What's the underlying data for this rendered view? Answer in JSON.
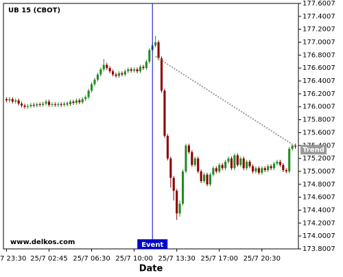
{
  "chart_data": {
    "type": "candlestick",
    "title": "UB 15 (CBOT)",
    "xlabel": "Date",
    "watermark": "www.delkos.com",
    "up_color": "#228b22",
    "down_color": "#8b0000",
    "xlim": [
      -1,
      96
    ],
    "xticks": [
      {
        "value": 0,
        "label": "7 23:30"
      },
      {
        "value": 14,
        "label": "25/7 02:45"
      },
      {
        "value": 28,
        "label": "25/7 06:30"
      },
      {
        "value": 42,
        "label": "25/7 10:00"
      },
      {
        "value": 56,
        "label": "25/7 13:30"
      },
      {
        "value": 70,
        "label": "25/7 17:00"
      },
      {
        "value": 84,
        "label": "25/7 20:30"
      }
    ],
    "ylim": [
      173.8007,
      177.6007
    ],
    "yticks": [
      173.8007,
      174.0007,
      174.2007,
      174.4007,
      174.6007,
      174.8007,
      175.0007,
      175.2007,
      175.4007,
      175.6007,
      175.8007,
      176.0007,
      176.2007,
      176.4007,
      176.6007,
      176.8007,
      177.0007,
      177.2007,
      177.4007,
      177.6007
    ],
    "event": {
      "x": 48,
      "label": "Event",
      "color": "#0000cc"
    },
    "trend": {
      "x": [
        49,
        95
      ],
      "y": [
        176.78,
        175.39
      ],
      "label": "Trend",
      "color": "#999999"
    },
    "open": [
      176.12,
      176.1,
      176.12,
      176.08,
      176.1,
      176.05,
      176.02,
      176.0,
      176.01,
      176.03,
      176.02,
      176.04,
      176.03,
      176.05,
      176.08,
      176.03,
      176.04,
      176.03,
      176.04,
      176.03,
      176.05,
      176.04,
      176.08,
      176.06,
      176.1,
      176.07,
      176.12,
      176.15,
      176.25,
      176.35,
      176.42,
      176.5,
      176.58,
      176.65,
      176.6,
      176.55,
      176.5,
      176.48,
      176.52,
      176.5,
      176.55,
      176.58,
      176.56,
      176.58,
      176.55,
      176.62,
      176.6,
      176.7,
      176.88,
      176.95,
      177.0,
      176.75,
      176.25,
      175.55,
      175.2,
      174.9,
      174.7,
      174.35,
      174.5,
      175.0,
      175.4,
      175.3,
      175.1,
      175.2,
      175.0,
      174.85,
      174.95,
      174.8,
      174.95,
      175.05,
      175.0,
      175.1,
      175.05,
      175.15,
      175.2,
      175.05,
      175.25,
      175.1,
      175.2,
      175.05,
      175.15,
      175.08,
      175.0,
      175.05,
      174.98,
      175.05,
      175.02,
      175.08,
      175.05,
      175.12,
      175.15,
      175.1,
      175.02,
      175.0,
      175.35,
      175.4
    ],
    "high": [
      176.15,
      176.15,
      176.15,
      176.13,
      176.13,
      176.08,
      176.05,
      176.04,
      176.06,
      176.06,
      176.07,
      176.07,
      176.08,
      176.11,
      176.11,
      176.07,
      176.07,
      176.07,
      176.07,
      176.08,
      176.08,
      176.11,
      176.11,
      176.13,
      176.13,
      176.15,
      176.18,
      176.28,
      176.38,
      176.45,
      176.53,
      176.61,
      176.74,
      176.68,
      176.63,
      176.58,
      176.53,
      176.55,
      176.55,
      176.58,
      176.61,
      176.61,
      176.61,
      176.61,
      176.65,
      176.65,
      176.73,
      176.91,
      177.0,
      177.1,
      177.03,
      176.78,
      176.28,
      175.58,
      175.23,
      174.93,
      174.73,
      174.55,
      175.03,
      175.43,
      175.43,
      175.33,
      175.23,
      175.23,
      175.03,
      174.98,
      174.98,
      174.98,
      175.08,
      175.08,
      175.13,
      175.13,
      175.18,
      175.23,
      175.23,
      175.28,
      175.28,
      175.23,
      175.23,
      175.18,
      175.18,
      175.11,
      175.08,
      175.08,
      175.08,
      175.08,
      175.11,
      175.11,
      175.15,
      175.18,
      175.18,
      175.13,
      175.05,
      175.38,
      175.43,
      175.43
    ],
    "low": [
      176.07,
      176.07,
      176.05,
      176.05,
      176.02,
      175.99,
      175.97,
      175.97,
      175.98,
      175.99,
      175.99,
      176.0,
      176.0,
      176.02,
      176.0,
      176.0,
      176.0,
      176.0,
      176.0,
      176.0,
      176.01,
      176.01,
      176.03,
      176.03,
      176.04,
      176.04,
      176.09,
      176.12,
      176.22,
      176.32,
      176.39,
      176.47,
      176.55,
      176.57,
      176.52,
      176.47,
      176.45,
      176.45,
      176.47,
      176.47,
      176.52,
      176.53,
      176.53,
      176.52,
      176.52,
      176.57,
      176.57,
      176.67,
      176.85,
      176.92,
      176.72,
      176.22,
      175.52,
      175.17,
      174.75,
      174.55,
      174.25,
      174.3,
      174.47,
      174.97,
      175.27,
      175.07,
      175.07,
      174.97,
      174.82,
      174.82,
      174.77,
      174.77,
      174.92,
      174.97,
      174.97,
      175.02,
      175.02,
      175.12,
      175.02,
      175.02,
      175.07,
      175.07,
      175.02,
      175.02,
      175.05,
      174.97,
      174.97,
      174.95,
      174.95,
      174.99,
      174.99,
      175.02,
      175.02,
      175.09,
      175.07,
      174.99,
      174.97,
      174.97,
      175.32,
      175.35
    ],
    "close": [
      176.1,
      176.12,
      176.08,
      176.1,
      176.05,
      176.02,
      176.0,
      176.01,
      176.03,
      176.02,
      176.04,
      176.03,
      176.05,
      176.08,
      176.03,
      176.04,
      176.03,
      176.04,
      176.03,
      176.05,
      176.04,
      176.08,
      176.06,
      176.1,
      176.07,
      176.12,
      176.15,
      176.25,
      176.35,
      176.42,
      176.5,
      176.58,
      176.65,
      176.6,
      176.55,
      176.5,
      176.48,
      176.52,
      176.5,
      176.55,
      176.58,
      176.56,
      176.58,
      176.55,
      176.62,
      176.6,
      176.7,
      176.88,
      176.95,
      177.0,
      176.75,
      176.25,
      175.55,
      175.2,
      174.9,
      174.7,
      174.35,
      174.5,
      175.0,
      175.4,
      175.3,
      175.1,
      175.2,
      175.0,
      174.85,
      174.95,
      174.8,
      174.95,
      175.05,
      175.0,
      175.1,
      175.05,
      175.15,
      175.2,
      175.05,
      175.25,
      175.1,
      175.2,
      175.05,
      175.15,
      175.08,
      175.0,
      175.05,
      174.98,
      175.05,
      175.02,
      175.08,
      175.05,
      175.12,
      175.15,
      175.1,
      175.02,
      175.0,
      175.35,
      175.4,
      175.38
    ]
  }
}
